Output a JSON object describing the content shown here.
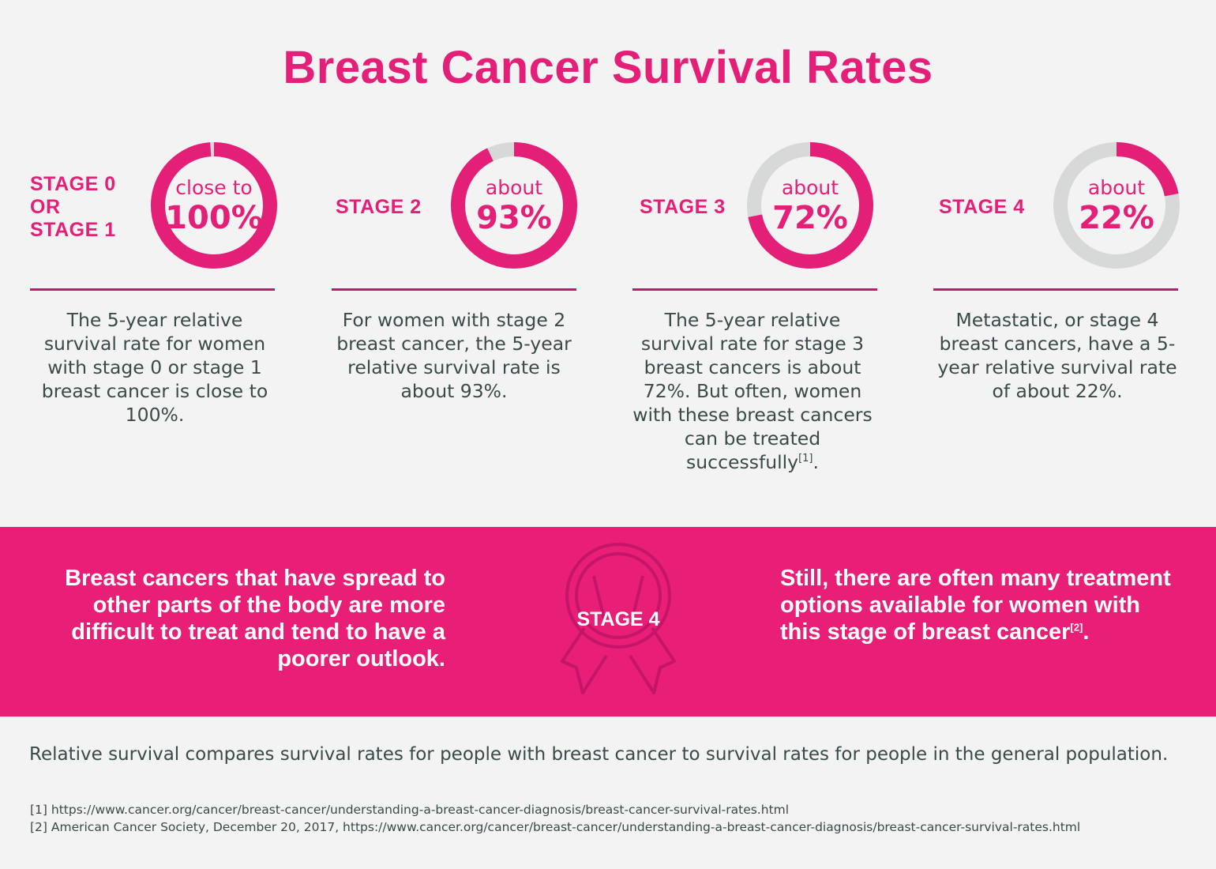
{
  "title": "Breast Cancer Survival Rates",
  "colors": {
    "accent": "#e41f78",
    "track": "#d7d9d8",
    "band": "#e91e76",
    "text": "#3a4a4a"
  },
  "stages": [
    {
      "label_lines": [
        "STAGE 0",
        "OR",
        "STAGE 1"
      ],
      "ring_small": "close to",
      "ring_big": "100%",
      "percent": 99,
      "description": "The 5-year relative survival rate for women with stage 0 or stage 1 breast cancer is close to 100%.",
      "sup": ""
    },
    {
      "label_lines": [
        "STAGE 2"
      ],
      "ring_small": "about",
      "ring_big": "93%",
      "percent": 93,
      "description": "For women with stage 2 breast cancer, the 5-year relative survival rate is about 93%.",
      "sup": ""
    },
    {
      "label_lines": [
        "STAGE 3"
      ],
      "ring_small": "about",
      "ring_big": "72%",
      "percent": 72,
      "description": "The 5-year relative survival rate for stage 3 breast cancers is about 72%. But often, women with these breast cancers can be treated successfully",
      "sup": "[1]",
      "suffix": "."
    },
    {
      "label_lines": [
        "STAGE 4"
      ],
      "ring_small": "about",
      "ring_big": "22%",
      "percent": 22,
      "description": "Metastatic, or stage 4 breast cancers, have a 5-year relative survival rate of about 22%.",
      "sup": ""
    }
  ],
  "band": {
    "left_text": "Breast cancers that have spread to other parts of the body are more difficult to treat and tend to have a poorer outlook.",
    "ribbon_label": "STAGE 4",
    "ribbon_icon": "awareness-ribbon-icon",
    "right_text": "Still, there are often many treatment options available for women with this stage of breast cancer",
    "right_sup": "[2]",
    "right_suffix": "."
  },
  "footnote": "Relative survival compares survival rates for people with breast cancer to survival rates for people in the general population.",
  "references": [
    "[1] https://www.cancer.org/cancer/breast-cancer/understanding-a-breast-cancer-diagnosis/breast-cancer-survival-rates.html",
    "[2] American Cancer Society, December 20, 2017, https://www.cancer.org/cancer/breast-cancer/understanding-a-breast-cancer-diagnosis/breast-cancer-survival-rates.html"
  ]
}
